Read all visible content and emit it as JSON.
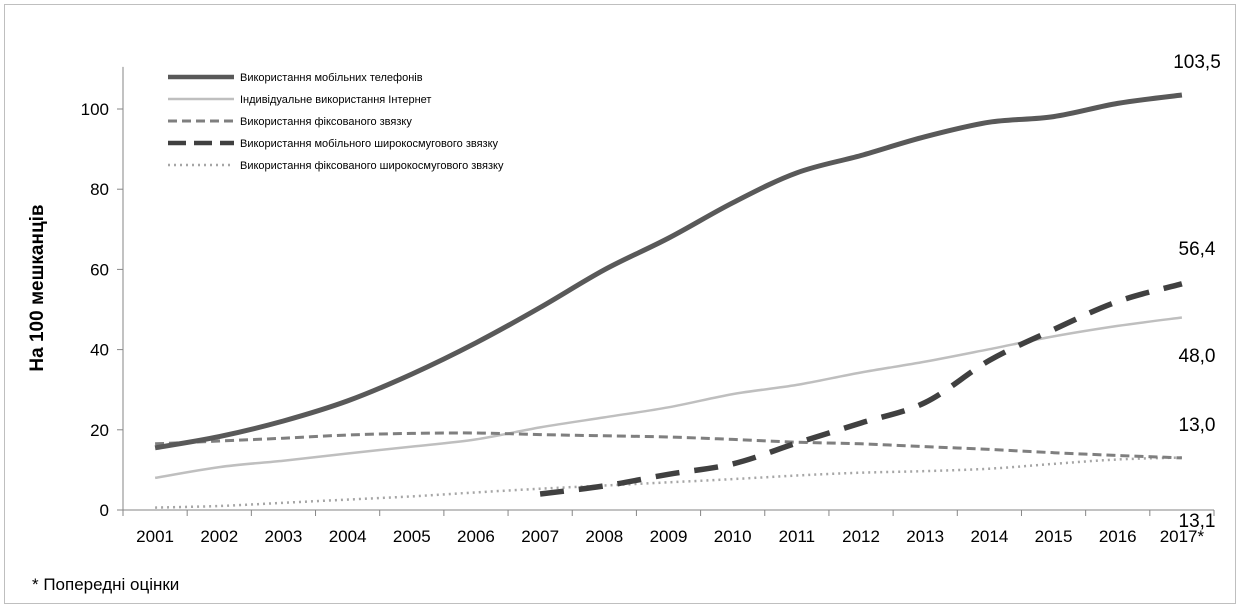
{
  "chart_data": {
    "type": "line",
    "title": "",
    "xlabel": "",
    "ylabel": "На 100 мешканців",
    "ylim": [
      0,
      110
    ],
    "yticks": [
      0,
      20,
      40,
      60,
      80,
      100
    ],
    "grid": false,
    "legend_position": "top-left",
    "categories": [
      "2001",
      "2002",
      "2003",
      "2004",
      "2005",
      "2006",
      "2007",
      "2008",
      "2009",
      "2010",
      "2011",
      "2012",
      "2013",
      "2014",
      "2015",
      "2016",
      "2017*"
    ],
    "series": [
      {
        "name": "Використання мобільних телефонів",
        "style": "solid-thick",
        "color": "#595959",
        "values": [
          15.5,
          18.3,
          22.2,
          27.2,
          33.9,
          41.7,
          50.5,
          59.9,
          67.8,
          76.6,
          84.1,
          88.4,
          93.1,
          96.7,
          98.1,
          101.4,
          103.5
        ]
      },
      {
        "name": "Індивідуальне використання Інтернет",
        "style": "solid-thin",
        "color": "#bfbfbf",
        "values": [
          8.0,
          10.7,
          12.3,
          14.1,
          15.8,
          17.6,
          20.6,
          23.1,
          25.6,
          28.9,
          31.2,
          34.3,
          37.0,
          40.1,
          43.3,
          45.9,
          48.0
        ]
      },
      {
        "name": "Використання фіксованого звязку",
        "style": "dashed",
        "color": "#7f7f7f",
        "values": [
          16.5,
          17.2,
          17.9,
          18.7,
          19.1,
          19.2,
          18.8,
          18.5,
          18.2,
          17.6,
          16.9,
          16.5,
          15.8,
          15.1,
          14.3,
          13.6,
          13.0
        ]
      },
      {
        "name": "Використання мобільного широкосмугового звязку",
        "style": "long-dash-thick",
        "color": "#404040",
        "values": [
          null,
          null,
          null,
          null,
          null,
          null,
          4.0,
          6.0,
          8.9,
          11.5,
          16.7,
          21.7,
          26.8,
          37.3,
          45.0,
          52.0,
          56.4
        ]
      },
      {
        "name": "Використання фіксованого широкосмугового звязку",
        "style": "dotted",
        "color": "#a6a6a6",
        "values": [
          0.6,
          1.0,
          1.8,
          2.6,
          3.4,
          4.4,
          5.3,
          6.1,
          6.9,
          7.7,
          8.6,
          9.3,
          9.7,
          10.3,
          11.5,
          12.6,
          13.1
        ]
      }
    ],
    "data_labels": [
      "103,5",
      "56,4",
      "48,0",
      "13,0",
      "13,1"
    ]
  },
  "footnote": "* Попередні оцінки"
}
